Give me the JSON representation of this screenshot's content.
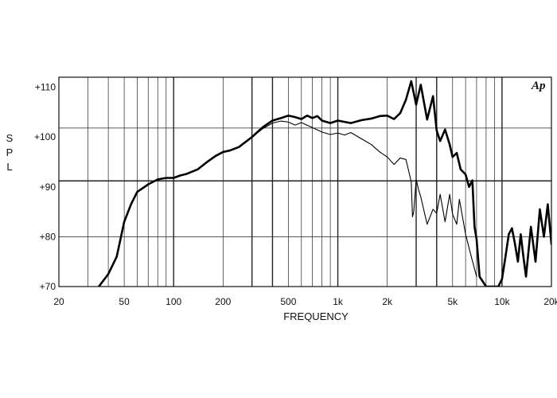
{
  "chart_data": {
    "type": "line",
    "title": "",
    "xlabel": "FREQUENCY",
    "ylabel": "SPL",
    "xscale": "log",
    "xlim": [
      20,
      20000
    ],
    "ylim": [
      70,
      112
    ],
    "grid": true,
    "logo": "Ap",
    "x_ticks": [
      {
        "value": 20,
        "label": "20"
      },
      {
        "value": 50,
        "label": "50"
      },
      {
        "value": 100,
        "label": "100"
      },
      {
        "value": 200,
        "label": "200"
      },
      {
        "value": 500,
        "label": "500"
      },
      {
        "value": 1000,
        "label": "1k"
      },
      {
        "value": 2000,
        "label": "2k"
      },
      {
        "value": 5000,
        "label": "5k"
      },
      {
        "value": 10000,
        "label": "10k"
      },
      {
        "value": 20000,
        "label": "20k"
      }
    ],
    "y_ticks": [
      {
        "value": 70,
        "label": "+70"
      },
      {
        "value": 80,
        "label": "+80"
      },
      {
        "value": 90,
        "label": "+90"
      },
      {
        "value": 100,
        "label": "+100"
      },
      {
        "value": 110,
        "label": "+110"
      }
    ],
    "series": [
      {
        "style": "thick",
        "x": [
          35,
          40,
          45,
          50,
          55,
          60,
          70,
          80,
          90,
          100,
          110,
          120,
          140,
          160,
          180,
          200,
          220,
          250,
          300,
          350,
          400,
          450,
          500,
          550,
          600,
          650,
          700,
          750,
          800,
          900,
          1000,
          1200,
          1400,
          1600,
          1800,
          2000,
          2200,
          2400,
          2600,
          2800,
          3000,
          3200,
          3500,
          3800,
          4000,
          4200,
          4500,
          4800,
          5000,
          5300,
          5600,
          6000,
          6300,
          6600,
          6800,
          7000,
          7300,
          8000,
          9500,
          10000,
          10500,
          11000,
          11500,
          12000,
          12500,
          13000,
          13500,
          14000,
          15000,
          16000,
          17000,
          18000,
          19000,
          20000
        ],
        "y": [
          70,
          72.5,
          76,
          83,
          86.5,
          89,
          90.5,
          91.5,
          91.8,
          91.8,
          92.3,
          92.6,
          93.5,
          95,
          96.2,
          97,
          97.3,
          98,
          100,
          102,
          103.3,
          103.8,
          104.3,
          104,
          103.6,
          104.3,
          103.8,
          104.2,
          103.3,
          102.8,
          103.3,
          102.8,
          103.4,
          103.7,
          104.2,
          104.3,
          103.6,
          104.8,
          107.5,
          111.2,
          106.5,
          110.5,
          103.5,
          108.2,
          101.3,
          99.2,
          101.5,
          98.5,
          96,
          96.8,
          93.5,
          92.5,
          90,
          91.3,
          82,
          79.5,
          72,
          70,
          70,
          71.5,
          76,
          80.5,
          81.7,
          78.5,
          75,
          80.5,
          76,
          72,
          82,
          75,
          85.5,
          80,
          86.5,
          78.5
        ]
      },
      {
        "style": "thin",
        "x": [
          300,
          350,
          400,
          450,
          500,
          550,
          600,
          700,
          800,
          900,
          1000,
          1100,
          1200,
          1400,
          1600,
          1800,
          2000,
          2200,
          2400,
          2600,
          2800,
          2850,
          2900,
          3000,
          3100,
          3200,
          3500,
          3800,
          4000,
          4200,
          4500,
          4800,
          5000,
          5300,
          5500,
          6000,
          6500,
          7000
        ],
        "y": [
          100,
          101.7,
          102.8,
          103.2,
          103,
          102.4,
          102.9,
          101.9,
          101,
          100.5,
          100.8,
          100.4,
          100.9,
          99.6,
          98.5,
          97,
          96,
          94.5,
          95.8,
          95.5,
          91,
          84,
          85,
          91.5,
          89.5,
          88,
          82.5,
          85.5,
          84.7,
          88.5,
          83,
          88.5,
          84.5,
          82.5,
          87.5,
          80.5,
          76,
          72
        ]
      }
    ]
  }
}
